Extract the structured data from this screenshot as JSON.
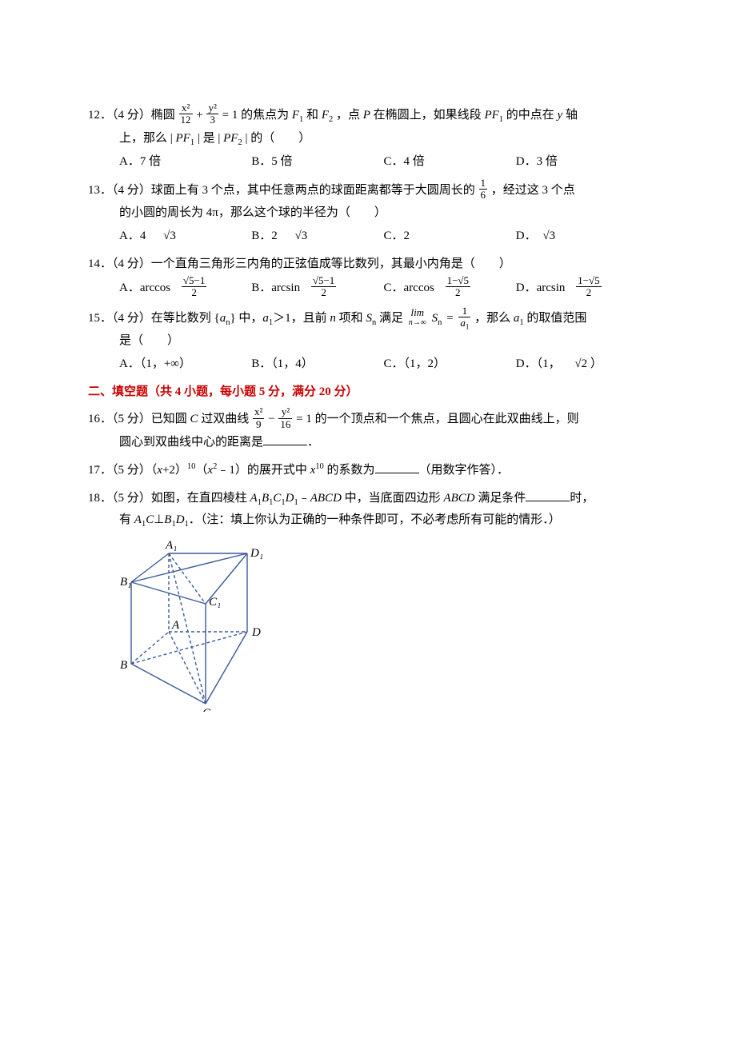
{
  "q12": {
    "prefix": "12．（4 分）椭圆",
    "frac1_num": "x²",
    "frac1_den": "12",
    "plus": "+",
    "frac2_num": "y²",
    "frac2_den": "3",
    "eq": "=",
    "after_eq": "1 的焦点为 ",
    "f1": "F",
    "f1_sub": "1",
    "mid1": " 和 ",
    "f2": "F",
    "f2_sub": "2",
    "mid2": "，点 ",
    "p": "P",
    "mid3": " 在椭圆上，如果线段 ",
    "pf1": "PF",
    "pf1_sub": "1",
    "mid4": " 的中点在 ",
    "y": "y",
    "mid5": " 轴",
    "line2a": "上，那么 |",
    "pf1b": "PF",
    "pf1b_sub": "1",
    "mid6": "| 是 |",
    "pf2b": "PF",
    "pf2b_sub": "2",
    "mid7": "| 的（　　）",
    "optA": "A．7 倍",
    "optB": "B．5 倍",
    "optC": "C．4 倍",
    "optD": "D．3 倍"
  },
  "q13": {
    "prefix": "13．（4 分）球面上有 3 个点，其中任意两点的球面距离都等于大圆周长的",
    "frac_num": "1",
    "frac_den": "6",
    "suffix": "，经过这 3 个点",
    "line2": "的小圆的周长为 4π，那么这个球的半径为（　　）",
    "optA_pre": "A．4",
    "optA_sqrt": "√3",
    "optB_pre": "B．2",
    "optB_sqrt": "√3",
    "optC": "C．2",
    "optD_pre": "D．",
    "optD_sqrt": "√3"
  },
  "q14": {
    "text": "14．（4 分）一个直角三角形三内角的正弦值成等比数列，其最小内角是（　　）",
    "optA_pre": "A．arccos",
    "optA_num": "√5−1",
    "optA_den": "2",
    "optB_pre": "B．arcsin",
    "optB_num": "√5−1",
    "optB_den": "2",
    "optC_pre": "C．arccos",
    "optC_num": "1−√5",
    "optC_den": "2",
    "optD_pre": "D．arcsin",
    "optD_num": "1−√5",
    "optD_den": "2"
  },
  "q15": {
    "prefix": "15．（4 分）在等比数列 {",
    "an": "a",
    "an_sub": "n",
    "mid1": "} 中，",
    "a1": "a",
    "a1_sub": "1",
    "mid2": "＞1，且前 ",
    "n": "n",
    "mid3": " 项和 ",
    "sn": "S",
    "sn_sub": "n",
    "mid4": " 满足",
    "lim_top": "lim",
    "lim_bot": "n→∞",
    "sn2": "S",
    "sn2_sub": "n",
    "eq": "=",
    "rhs_num": "1",
    "rhs_den_a": "a",
    "rhs_den_sub": "1",
    "suffix": "，那么 ",
    "a1b": "a",
    "a1b_sub": "1",
    "suffix2": " 的取值范围",
    "line2": "是（　　）",
    "optA": "A．（1，+∞）",
    "optB": "B．（1，4）",
    "optC": "C．（1，2）",
    "optD_pre": "D．（1，",
    "optD_sqrt": "√2",
    "optD_post": "）"
  },
  "section2": "二、填空题（共 4 小题，每小题 5 分，满分 20 分）",
  "q16": {
    "prefix": "16．（5 分）已知圆 ",
    "c": "C",
    "mid1": " 过双曲线",
    "f1_num": "x²",
    "f1_den": "9",
    "minus": "−",
    "f2_num": "y²",
    "f2_den": "16",
    "eq": "=",
    "mid2": "1 的一个顶点和一个焦点，且圆心在此双曲线上，则",
    "line2": "圆心到双曲线中心的距离是",
    "period": "．"
  },
  "q17": {
    "prefix": "17．（5 分）（",
    "x": "x",
    "mid1": "+2）",
    "sup1": "10",
    "mid2": "（",
    "x2": "x",
    "sup2": "2",
    "mid3": "﹣1）的展开式中 ",
    "x3": "x",
    "sup3": "10",
    "mid4": " 的系数为",
    "suffix": "（用数字作答）．"
  },
  "q18": {
    "prefix": "18．（5 分）如图，在直四棱柱 ",
    "t1": "A",
    "t1s": "1",
    "t2": "B",
    "t2s": "1",
    "t3": "C",
    "t3s": "1",
    "t4": "D",
    "t4s": "1",
    "mid1": "﹣",
    "abcd": "ABCD",
    "mid2": " 中，当底面四边形 ",
    "abcd2": "ABCD",
    "mid3": " 满足条件",
    "suffix": "时，",
    "line2_pre": "有 ",
    "l2_a1": "A",
    "l2_a1s": "1",
    "l2_c": "C",
    "l2_perp": "⊥",
    "l2_b1": "B",
    "l2_b1s": "1",
    "l2_d1": "D",
    "l2_d1s": "1",
    "line2_post": "．（注：填上你认为正确的一种条件即可，不必考虑所有可能的情形．）"
  },
  "figure": {
    "labels": {
      "A1": "A₁",
      "B1": "B₁",
      "C1": "C₁",
      "D1": "D₁",
      "A": "A",
      "B": "B",
      "C": "C",
      "D": "D"
    },
    "stroke": "#3a5a9a",
    "stroke_width": 1.4,
    "dash": "4,3"
  }
}
